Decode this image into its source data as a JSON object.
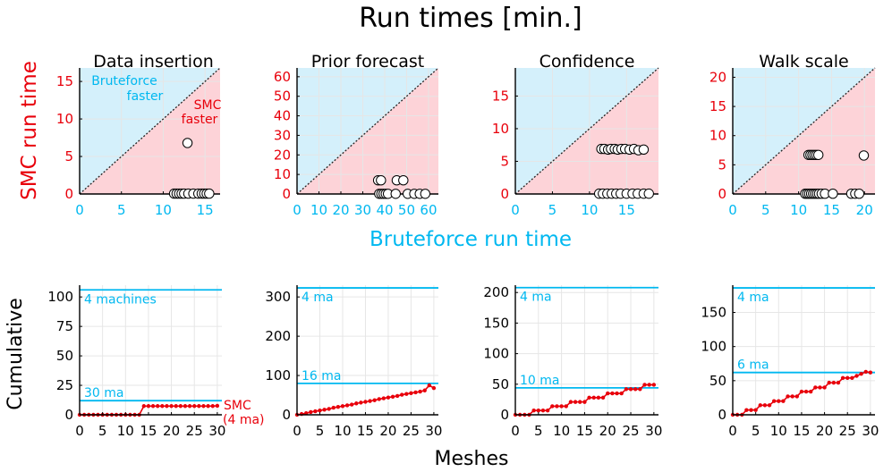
{
  "figure": {
    "title": "Run times [min.]",
    "top_ylabel": "SMC run time",
    "top_xlabel": "Bruteforce run time",
    "bottom_ylabel": "Cumulative",
    "bottom_xlabel": "Meshes",
    "region_labels": {
      "bruteforce": [
        "Bruteforce",
        "faster"
      ],
      "smc": [
        "SMC",
        "faster"
      ]
    },
    "smc_legend": [
      "SMC",
      "(4 ma)"
    ],
    "colors": {
      "bruteforce_fill": "#d4f0fb",
      "smc_fill": "#fdd3d8",
      "cyan": "#00b8f0",
      "red": "#e8000b",
      "diagonal": "#222222",
      "axis": "#000000",
      "grid": "#e6e6e6"
    }
  },
  "chart_data": [
    {
      "type": "scatter",
      "title": "Data insertion",
      "xlabel": "Bruteforce run time",
      "ylabel": "SMC run time",
      "xlim": [
        0,
        16.8
      ],
      "ylim": [
        0,
        16.8
      ],
      "xticks": [
        0,
        5,
        10,
        15
      ],
      "yticks": [
        0,
        5,
        10,
        15
      ],
      "points": [
        [
          12.9,
          6.8
        ],
        [
          11.3,
          0.05
        ],
        [
          11.6,
          0.05
        ],
        [
          11.9,
          0.05
        ],
        [
          12.2,
          0.05
        ],
        [
          12.5,
          0.05
        ],
        [
          13.0,
          0.05
        ],
        [
          13.6,
          0.05
        ],
        [
          14.2,
          0.05
        ],
        [
          14.6,
          0.05
        ],
        [
          14.9,
          0.05
        ],
        [
          15.2,
          0.05
        ],
        [
          15.5,
          0.05
        ]
      ]
    },
    {
      "type": "scatter",
      "title": "Prior forecast",
      "xlabel": "Bruteforce run time",
      "ylabel": "SMC run time",
      "xlim": [
        0,
        64.5
      ],
      "ylim": [
        0,
        64.5
      ],
      "xticks": [
        0,
        10,
        20,
        30,
        40,
        50,
        60
      ],
      "yticks": [
        0,
        10,
        20,
        30,
        40,
        50,
        60
      ],
      "points": [
        [
          37.0,
          7.0
        ],
        [
          38.3,
          7.0
        ],
        [
          45.5,
          7.0
        ],
        [
          48.5,
          7.0
        ],
        [
          37.5,
          0.1
        ],
        [
          38.5,
          0.1
        ],
        [
          39.5,
          0.1
        ],
        [
          40.5,
          0.1
        ],
        [
          41.5,
          0.1
        ],
        [
          45.0,
          0.1
        ],
        [
          50.5,
          0.1
        ],
        [
          53.5,
          0.1
        ],
        [
          56.0,
          0.1
        ],
        [
          58.5,
          0.1
        ]
      ]
    },
    {
      "type": "scatter",
      "title": "Confidence",
      "xlabel": "Bruteforce run time",
      "ylabel": "SMC run time",
      "xlim": [
        0,
        19.3
      ],
      "ylim": [
        0,
        19.3
      ],
      "xticks": [
        0,
        5,
        10,
        15
      ],
      "yticks": [
        0,
        5,
        10,
        15
      ],
      "points": [
        [
          11.6,
          6.9
        ],
        [
          12.0,
          6.9
        ],
        [
          12.5,
          6.8
        ],
        [
          12.9,
          6.9
        ],
        [
          13.4,
          6.9
        ],
        [
          13.8,
          6.8
        ],
        [
          14.3,
          6.9
        ],
        [
          14.8,
          6.9
        ],
        [
          15.4,
          6.8
        ],
        [
          16.0,
          6.9
        ],
        [
          16.6,
          6.7
        ],
        [
          17.3,
          6.8
        ],
        [
          11.3,
          0.05
        ],
        [
          11.8,
          0.05
        ],
        [
          12.4,
          0.05
        ],
        [
          13.0,
          0.05
        ],
        [
          13.6,
          0.05
        ],
        [
          14.2,
          0.05
        ],
        [
          15.0,
          0.05
        ],
        [
          15.8,
          0.05
        ],
        [
          16.5,
          0.05
        ],
        [
          17.3,
          0.05
        ],
        [
          18.0,
          0.05
        ]
      ]
    },
    {
      "type": "scatter",
      "title": "Walk scale",
      "xlabel": "Bruteforce run time",
      "ylabel": "SMC run time",
      "xlim": [
        0,
        21.6
      ],
      "ylim": [
        0,
        21.6
      ],
      "xticks": [
        0,
        5,
        10,
        15,
        20
      ],
      "yticks": [
        0,
        5,
        10,
        15,
        20
      ],
      "points": [
        [
          11.5,
          6.7
        ],
        [
          11.8,
          6.7
        ],
        [
          12.1,
          6.7
        ],
        [
          12.4,
          6.7
        ],
        [
          12.7,
          6.7
        ],
        [
          13.0,
          6.7
        ],
        [
          19.9,
          6.6
        ],
        [
          11.0,
          0.05
        ],
        [
          11.3,
          0.05
        ],
        [
          11.6,
          0.05
        ],
        [
          11.9,
          0.05
        ],
        [
          12.2,
          0.05
        ],
        [
          12.5,
          0.05
        ],
        [
          12.8,
          0.05
        ],
        [
          13.1,
          0.05
        ],
        [
          13.5,
          0.05
        ],
        [
          14.0,
          0.05
        ],
        [
          15.2,
          0.05
        ],
        [
          18.0,
          0.05
        ],
        [
          18.6,
          0.05
        ],
        [
          19.2,
          0.05
        ]
      ]
    },
    {
      "type": "line",
      "xlabel": "Meshes",
      "ylabel": "Cumulative",
      "xlim": [
        0,
        31
      ],
      "ylim": [
        0,
        110
      ],
      "xticks": [
        0,
        5,
        10,
        15,
        20,
        25,
        30
      ],
      "yticks": [
        0,
        25,
        50,
        75,
        100
      ],
      "hlines": [
        {
          "label": "4 machines",
          "value": 106
        },
        {
          "label": "30 ma",
          "value": 12
        }
      ],
      "series": [
        {
          "name": "SMC (4 ma)",
          "x": [
            0,
            1,
            2,
            3,
            4,
            5,
            6,
            7,
            8,
            9,
            10,
            11,
            12,
            13,
            14,
            15,
            16,
            17,
            18,
            19,
            20,
            21,
            22,
            23,
            24,
            25,
            26,
            27,
            28,
            29,
            30
          ],
          "values": [
            0,
            0,
            0,
            0,
            0,
            0,
            0,
            0,
            0,
            0,
            0,
            0,
            0,
            0,
            7.4,
            7.4,
            7.4,
            7.4,
            7.4,
            7.4,
            7.4,
            7.4,
            7.4,
            7.4,
            7.4,
            7.4,
            7.4,
            7.4,
            7.4,
            7.4,
            7.6
          ]
        }
      ]
    },
    {
      "type": "line",
      "xlabel": "Meshes",
      "ylabel": "Cumulative",
      "xlim": [
        0,
        31
      ],
      "ylim": [
        0,
        330
      ],
      "xticks": [
        0,
        5,
        10,
        15,
        20,
        25,
        30
      ],
      "yticks": [
        0,
        100,
        200,
        300
      ],
      "hlines": [
        {
          "label": "4 ma",
          "value": 323
        },
        {
          "label": "16 ma",
          "value": 80
        }
      ],
      "series": [
        {
          "name": "SMC (4 ma)",
          "x": [
            0,
            1,
            2,
            3,
            4,
            5,
            6,
            7,
            8,
            9,
            10,
            11,
            12,
            13,
            14,
            15,
            16,
            17,
            18,
            19,
            20,
            21,
            22,
            23,
            24,
            25,
            26,
            27,
            28,
            29,
            30
          ],
          "values": [
            0,
            2,
            4,
            7,
            9,
            11,
            13,
            15,
            18,
            20,
            22,
            24,
            26,
            29,
            31,
            33,
            35,
            37,
            40,
            42,
            44,
            46,
            48,
            51,
            53,
            55,
            57,
            59,
            62,
            75,
            68
          ]
        }
      ]
    },
    {
      "type": "line",
      "xlabel": "Meshes",
      "ylabel": "Cumulative",
      "xlim": [
        0,
        31
      ],
      "ylim": [
        0,
        212
      ],
      "xticks": [
        0,
        5,
        10,
        15,
        20,
        25,
        30
      ],
      "yticks": [
        0,
        50,
        100,
        150,
        200
      ],
      "hlines": [
        {
          "label": "4 ma",
          "value": 208
        },
        {
          "label": "10 ma",
          "value": 44
        }
      ],
      "series": [
        {
          "name": "SMC (4 ma)",
          "x": [
            0,
            1,
            2,
            3,
            4,
            5,
            6,
            7,
            8,
            9,
            10,
            11,
            12,
            13,
            14,
            15,
            16,
            17,
            18,
            19,
            20,
            21,
            22,
            23,
            24,
            25,
            26,
            27,
            28,
            29,
            30
          ],
          "values": [
            0,
            0,
            0,
            0,
            7,
            7,
            7,
            7,
            14,
            14,
            14,
            14,
            21,
            21,
            21,
            21,
            28,
            28,
            28,
            28,
            35,
            35,
            35,
            35,
            42,
            42,
            42,
            42,
            49,
            49,
            49
          ]
        }
      ]
    },
    {
      "type": "line",
      "xlabel": "Meshes",
      "ylabel": "Cumulative",
      "xlim": [
        0,
        31
      ],
      "ylim": [
        0,
        190
      ],
      "xticks": [
        0,
        5,
        10,
        15,
        20,
        25,
        30
      ],
      "yticks": [
        0,
        50,
        100,
        150
      ],
      "hlines": [
        {
          "label": "4 ma",
          "value": 186
        },
        {
          "label": "6 ma",
          "value": 62
        }
      ],
      "series": [
        {
          "name": "SMC (4 ma)",
          "x": [
            0,
            1,
            2,
            3,
            4,
            5,
            6,
            7,
            8,
            9,
            10,
            11,
            12,
            13,
            14,
            15,
            16,
            17,
            18,
            19,
            20,
            21,
            22,
            23,
            24,
            25,
            26,
            27,
            28,
            29,
            30
          ],
          "values": [
            0,
            0,
            0,
            7,
            7,
            7,
            14,
            14,
            14,
            20,
            20,
            20,
            27,
            27,
            27,
            34,
            34,
            34,
            40,
            40,
            40,
            47,
            47,
            47,
            54,
            54,
            54,
            57,
            60,
            63,
            62
          ]
        }
      ]
    }
  ]
}
